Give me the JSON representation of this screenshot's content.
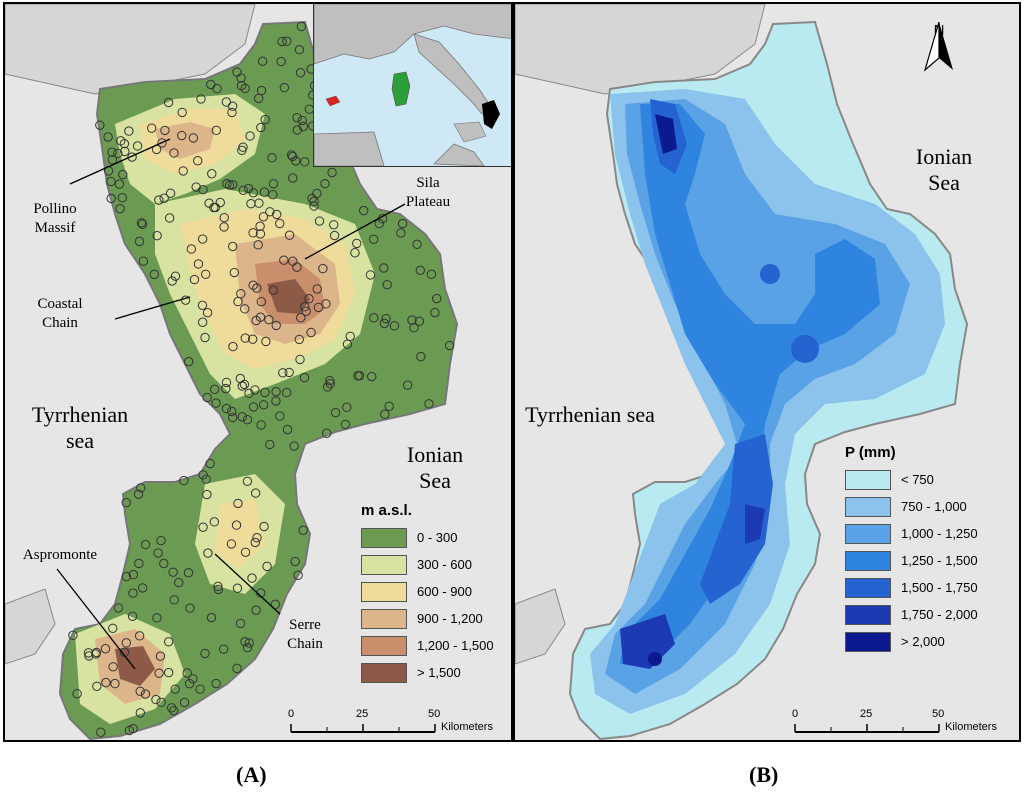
{
  "panel_a": {
    "seas": {
      "tyrrhenian": "Tyrrhenian sea",
      "ionian": "Ionian Sea"
    },
    "features": {
      "pollino": "Pollino Massif",
      "sila": "Sila Plateau",
      "coastal": "Coastal Chain",
      "aspromonte": "Aspromonte",
      "serre": "Serre Chain"
    },
    "legend": {
      "title": "m a.s.l.",
      "items": [
        {
          "label": "0 - 300",
          "color": "#6b9b53"
        },
        {
          "label": "300 - 600",
          "color": "#d9e3a1"
        },
        {
          "label": "600 - 900",
          "color": "#f0dc9a"
        },
        {
          "label": "900 - 1,200",
          "color": "#ddb58a"
        },
        {
          "label": "1,200 - 1,500",
          "color": "#c98e6c"
        },
        {
          "label": "> 1,500",
          "color": "#8c5a47"
        }
      ]
    },
    "scale": {
      "ticks": [
        "0",
        "25",
        "50"
      ],
      "unit": "Kilometers"
    },
    "caption": "(A)"
  },
  "panel_b": {
    "seas": {
      "tyrrhenian": "Tyrrhenian sea",
      "ionian": "Ionian Sea"
    },
    "north": "N",
    "legend": {
      "title": "P (mm)",
      "items": [
        {
          "label": "< 750",
          "color": "#b8eaf0"
        },
        {
          "label": "750 - 1,000",
          "color": "#8cc3ec"
        },
        {
          "label": "1,000 - 1,250",
          "color": "#5aa2e6"
        },
        {
          "label": "1,250 - 1,500",
          "color": "#2f84e0"
        },
        {
          "label": "1,500 - 1,750",
          "color": "#2563d0"
        },
        {
          "label": "1,750 - 2,000",
          "color": "#1b3ab4"
        },
        {
          "label": "> 2,000",
          "color": "#0b1a8e"
        }
      ]
    },
    "scale": {
      "ticks": [
        "0",
        "25",
        "50"
      ],
      "unit": "Kilometers"
    },
    "caption": "(B)"
  }
}
